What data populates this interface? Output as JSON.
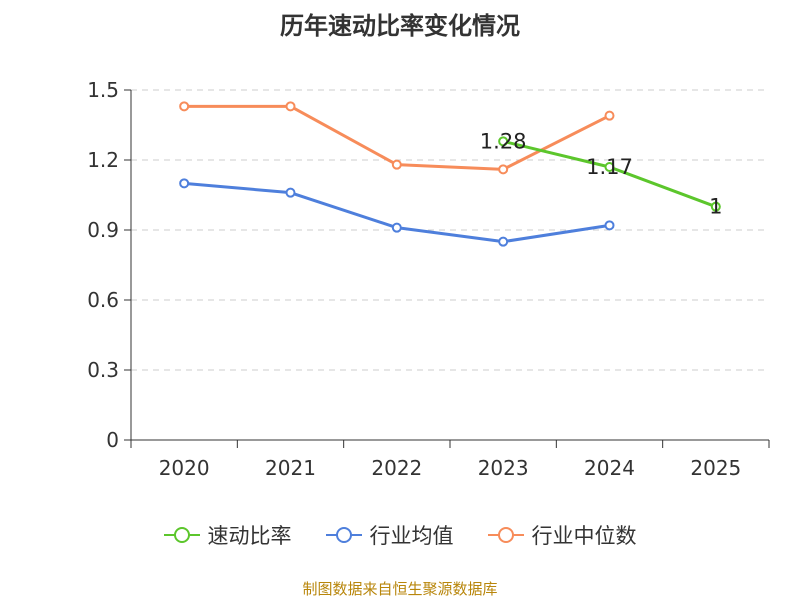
{
  "chart_data": {
    "type": "line",
    "title": "历年速动比率变化情况",
    "categories": [
      "2020",
      "2021",
      "2022",
      "2023",
      "2024",
      "2025"
    ],
    "y_ticks": [
      "0",
      "0.3",
      "0.6",
      "0.9",
      "1.2",
      "1.5"
    ],
    "ylim": [
      0,
      1.5
    ],
    "grid": true,
    "legend_position": "bottom",
    "series": [
      {
        "name": "速动比率",
        "color": "#5cc62c",
        "values": [
          null,
          null,
          null,
          1.28,
          1.17,
          1.0
        ],
        "labels": [
          null,
          null,
          null,
          "1.28",
          "1.17",
          "1"
        ]
      },
      {
        "name": "行业均值",
        "color": "#4e7fdc",
        "values": [
          1.1,
          1.06,
          0.91,
          0.85,
          0.92,
          null
        ]
      },
      {
        "name": "行业中位数",
        "color": "#f78c5a",
        "values": [
          1.43,
          1.43,
          1.18,
          1.16,
          1.39,
          null
        ]
      }
    ]
  },
  "footer": {
    "source": "制图数据来自恒生聚源数据库"
  }
}
